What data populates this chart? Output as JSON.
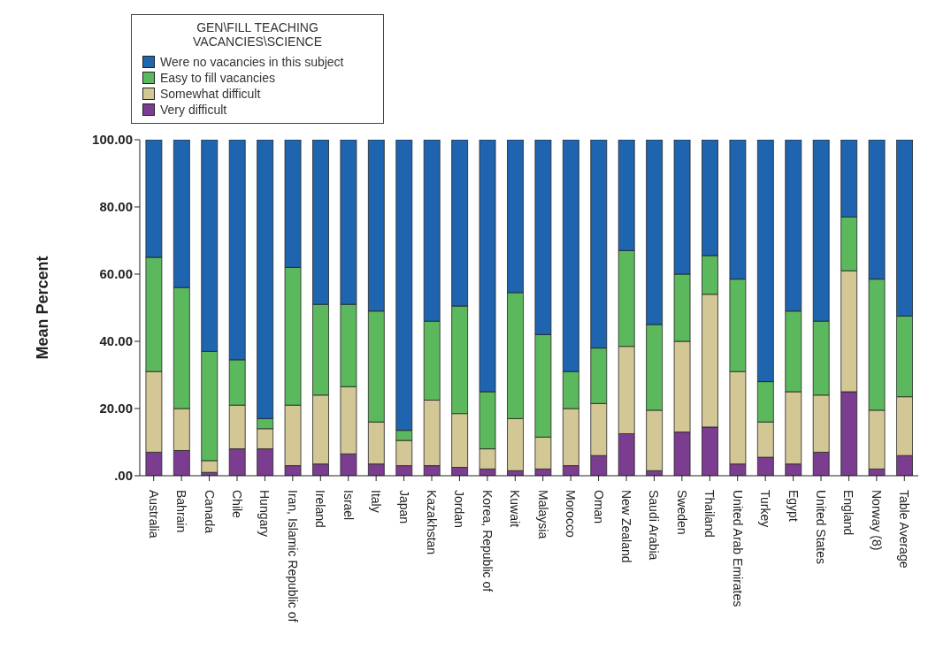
{
  "chart_data": {
    "type": "bar",
    "stacked": true,
    "ylabel": "Mean Percent",
    "legend_title": "GEN\\FILL TEACHING VACANCIES\\SCIENCE",
    "legend": "top left",
    "grid": false,
    "categories": [
      "Australia",
      "Bahrain",
      "Canada",
      "Chile",
      "Hungary",
      "Iran, Islamic Republic of",
      "Ireland",
      "Israel",
      "Italy",
      "Japan",
      "Kazakhstan",
      "Jordan",
      "Korea, Republic of",
      "Kuwait",
      "Malaysia",
      "Morocco",
      "Oman",
      "New Zealand",
      "Saudi Arabia",
      "Sweden",
      "Thailand",
      "United Arab Emirates",
      "Turkey",
      "Egypt",
      "United States",
      "England",
      "Norway (8)",
      "Table Average"
    ],
    "ylim": [
      0,
      100
    ],
    "yticks": [
      {
        "value": 0,
        "label": ".00"
      },
      {
        "value": 20,
        "label": "20.00"
      },
      {
        "value": 40,
        "label": "40.00"
      },
      {
        "value": 60,
        "label": "60.00"
      },
      {
        "value": 80,
        "label": "80.00"
      },
      {
        "value": 100,
        "label": "100.00"
      }
    ],
    "series": [
      {
        "name": "Very difficult",
        "color": "#7b3d8f",
        "values": [
          7,
          7.5,
          1,
          8,
          8,
          3,
          3.5,
          6.5,
          3.5,
          3,
          3,
          2.5,
          2,
          1.5,
          2,
          3,
          6,
          12.5,
          1.5,
          13,
          14.5,
          3.5,
          5.5,
          3.5,
          7,
          25,
          2,
          6
        ]
      },
      {
        "name": "Somewhat difficult",
        "color": "#d3c795",
        "values": [
          24,
          12.5,
          3.5,
          13,
          6,
          18,
          20.5,
          20,
          12.5,
          7.5,
          19.5,
          16,
          6,
          15.5,
          9.5,
          17,
          15.5,
          26,
          18,
          27,
          39.5,
          27.5,
          10.5,
          21.5,
          17,
          36,
          17.5,
          17.5
        ]
      },
      {
        "name": "Easy to fill vacancies",
        "color": "#5cb85c",
        "values": [
          34,
          36,
          32.5,
          13.5,
          3,
          41,
          27,
          24.5,
          33,
          3,
          23.5,
          32,
          17,
          37.5,
          30.5,
          11,
          16.5,
          28.5,
          25.5,
          20,
          11.5,
          27.5,
          12,
          24,
          22,
          16,
          39,
          24
        ]
      },
      {
        "name": "Were no vacancies in this subject",
        "color": "#1f64ae",
        "values": [
          35,
          44,
          63,
          65.5,
          83,
          38,
          49,
          49,
          51,
          86.5,
          54,
          49.5,
          75,
          45.5,
          58,
          69,
          62,
          33,
          55,
          40,
          34.5,
          41.5,
          72,
          51,
          54,
          23,
          41.5,
          52.5
        ]
      }
    ]
  }
}
